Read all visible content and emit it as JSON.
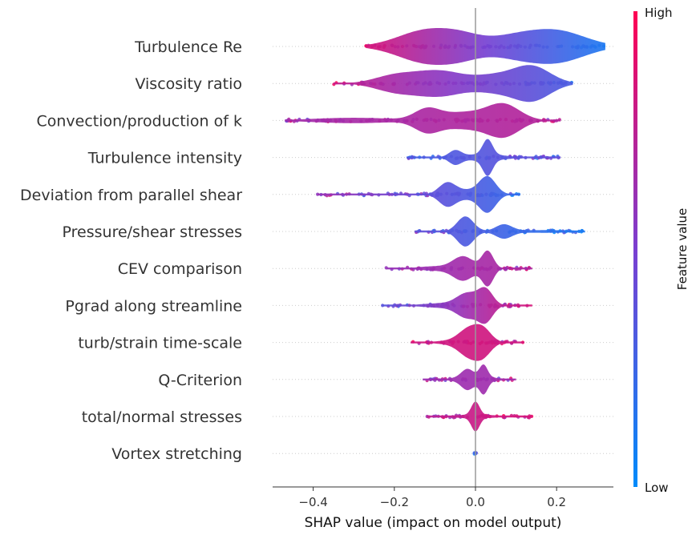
{
  "chart_data": {
    "type": "violin",
    "xlabel": "SHAP value (impact on model output)",
    "xlim": [
      -0.5,
      0.34
    ],
    "xticks": [
      "−0.4",
      "−0.2",
      "0.0",
      "0.2"
    ],
    "xtick_values": [
      -0.4,
      -0.2,
      0.0,
      0.2
    ],
    "colorbar": {
      "title": "Feature value",
      "high_label": "High",
      "low_label": "Low",
      "high_color": "#ff0052",
      "low_color": "#008bfb"
    },
    "features": [
      {
        "name": "Turbulence Re",
        "min": -0.27,
        "max": 0.32,
        "bumps": [
          [
            -0.12,
            0.07,
            1.0
          ],
          [
            -0.03,
            0.05,
            0.45
          ],
          [
            0.2,
            0.07,
            0.95
          ],
          [
            0.09,
            0.06,
            0.5
          ]
        ],
        "color_left": 0.85,
        "color_right": 0.12
      },
      {
        "name": "Viscosity ratio",
        "min": -0.35,
        "max": 0.24,
        "bumps": [
          [
            -0.09,
            0.06,
            0.75
          ],
          [
            -0.2,
            0.05,
            0.45
          ],
          [
            0.14,
            0.045,
            1.0
          ],
          [
            0.05,
            0.05,
            0.45
          ]
        ],
        "color_left": 0.78,
        "color_right": 0.3
      },
      {
        "name": "Convection/production of k",
        "min": -0.47,
        "max": 0.21,
        "bumps": [
          [
            -0.12,
            0.03,
            0.55
          ],
          [
            -0.03,
            0.06,
            0.45
          ],
          [
            0.07,
            0.04,
            0.85
          ],
          [
            -0.3,
            0.1,
            0.15
          ]
        ],
        "color_left": 0.65,
        "color_right": 0.72
      },
      {
        "name": "Turbulence intensity",
        "min": -0.17,
        "max": 0.21,
        "bumps": [
          [
            0.03,
            0.012,
            0.85
          ],
          [
            -0.05,
            0.015,
            0.35
          ],
          [
            0.02,
            0.05,
            0.18
          ]
        ],
        "color_left": 0.3,
        "color_right": 0.4
      },
      {
        "name": "Deviation from parallel shear",
        "min": -0.39,
        "max": 0.11,
        "bumps": [
          [
            0.03,
            0.02,
            0.95
          ],
          [
            -0.07,
            0.02,
            0.6
          ],
          [
            -0.02,
            0.04,
            0.25
          ]
        ],
        "color_left": 0.62,
        "color_right": 0.22
      },
      {
        "name": "Pressure/shear stresses",
        "min": -0.15,
        "max": 0.27,
        "bumps": [
          [
            -0.025,
            0.02,
            0.9
          ],
          [
            0.07,
            0.02,
            0.4
          ],
          [
            0.17,
            0.08,
            0.08
          ]
        ],
        "color_left": 0.4,
        "color_right": 0.12
      },
      {
        "name": "CEV comparison",
        "min": -0.22,
        "max": 0.14,
        "bumps": [
          [
            -0.03,
            0.025,
            0.65
          ],
          [
            0.03,
            0.014,
            0.95
          ],
          [
            -0.1,
            0.04,
            0.12
          ]
        ],
        "color_left": 0.6,
        "color_right": 0.7
      },
      {
        "name": "Pgrad along streamline",
        "min": -0.23,
        "max": 0.14,
        "bumps": [
          [
            -0.02,
            0.025,
            0.7
          ],
          [
            0.025,
            0.018,
            0.95
          ],
          [
            -0.08,
            0.05,
            0.14
          ]
        ],
        "color_left": 0.35,
        "color_right": 0.85
      },
      {
        "name": "turb/strain time-scale",
        "min": -0.16,
        "max": 0.12,
        "bumps": [
          [
            -0.015,
            0.025,
            0.95
          ],
          [
            0.02,
            0.02,
            0.8
          ],
          [
            -0.06,
            0.04,
            0.12
          ]
        ],
        "color_left": 0.82,
        "color_right": 0.82
      },
      {
        "name": "Q-Criterion",
        "min": -0.13,
        "max": 0.1,
        "bumps": [
          [
            -0.02,
            0.015,
            0.5
          ],
          [
            0.02,
            0.01,
            0.75
          ],
          [
            0.0,
            0.05,
            0.15
          ]
        ],
        "color_left": 0.62,
        "color_right": 0.65
      },
      {
        "name": "total/normal stresses",
        "min": -0.12,
        "max": 0.14,
        "bumps": [
          [
            0.0,
            0.01,
            0.8
          ],
          [
            0.0,
            0.06,
            0.1
          ]
        ],
        "color_left": 0.75,
        "color_right": 0.85
      },
      {
        "name": "Vortex stretching",
        "min": -0.003,
        "max": 0.003,
        "bumps": [
          [
            0.0,
            0.002,
            0.35
          ]
        ],
        "color_left": 0.2,
        "color_right": 0.2
      }
    ]
  }
}
